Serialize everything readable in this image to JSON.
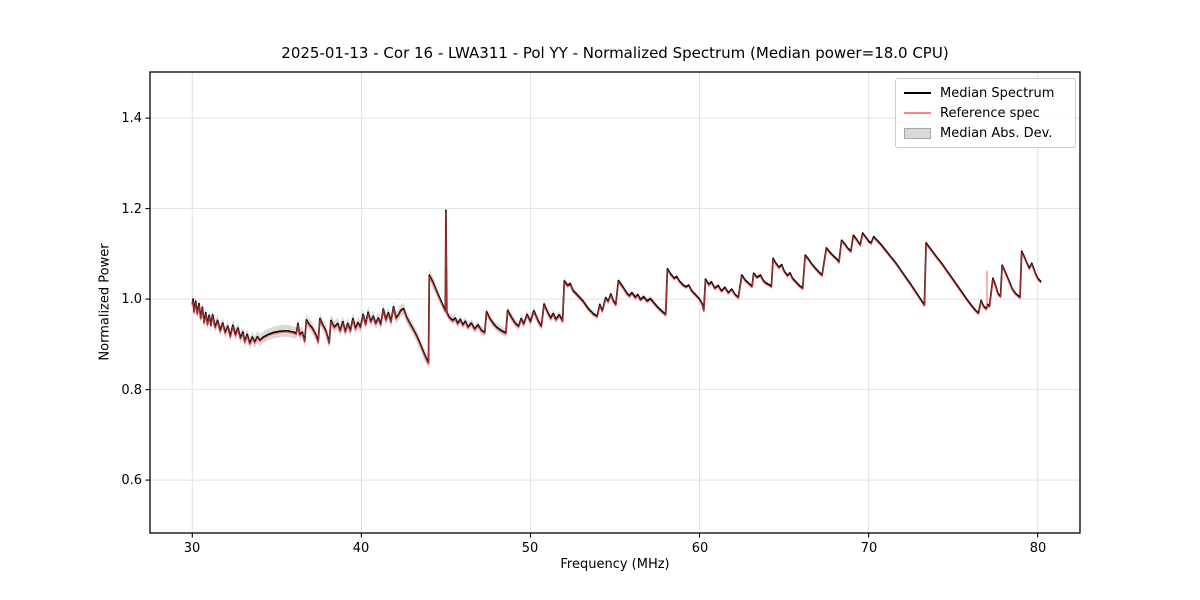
{
  "colors": {
    "median_line": "#000000",
    "reference_line": "#ff4444",
    "reference_opacity": 0.65,
    "reference_legend_swatch": "#ff8585",
    "mad_band_fill": "#8c8c8c",
    "mad_band_opacity": 0.32,
    "mad_legend_fill": "#d9d9d9",
    "mad_legend_edge": "#a6a6a6",
    "grid": "#e2e2e2",
    "spine": "#000000",
    "text": "#000000",
    "background": "#ffffff"
  },
  "chart_data": {
    "type": "line",
    "title": "2025-01-13 - Cor 16 - LWA311 - Pol YY - Normalized Spectrum (Median power=18.0 CPU)",
    "xlabel": "Frequency (MHz)",
    "ylabel": "Normalized Power",
    "xlim": [
      27.5,
      82.5
    ],
    "ylim": [
      0.483,
      1.502
    ],
    "xticks": [
      30,
      40,
      50,
      60,
      70,
      80
    ],
    "xticklabels": [
      "30",
      "40",
      "50",
      "60",
      "70",
      "80"
    ],
    "yticks": [
      0.6,
      0.8,
      1.0,
      1.2,
      1.4
    ],
    "yticklabels": [
      "0.6",
      "0.8",
      "1.0",
      "1.2",
      "1.4"
    ],
    "grid": true,
    "legend": {
      "position": "upper-right",
      "entries": [
        {
          "label": "Median Spectrum",
          "type": "line"
        },
        {
          "label": "Reference spec",
          "type": "line"
        },
        {
          "label": "Median Abs. Dev.",
          "type": "patch"
        }
      ]
    },
    "series": [
      {
        "name": "Median Spectrum",
        "points": [
          [
            30.0,
            0.988
          ],
          [
            30.05,
            1.0
          ],
          [
            30.1,
            0.972
          ],
          [
            30.2,
            0.995
          ],
          [
            30.3,
            0.968
          ],
          [
            30.4,
            0.99
          ],
          [
            30.5,
            0.958
          ],
          [
            30.6,
            0.982
          ],
          [
            30.7,
            0.948
          ],
          [
            30.8,
            0.97
          ],
          [
            30.9,
            0.944
          ],
          [
            31.0,
            0.964
          ],
          [
            31.1,
            0.942
          ],
          [
            31.2,
            0.965
          ],
          [
            31.35,
            0.938
          ],
          [
            31.5,
            0.953
          ],
          [
            31.65,
            0.93
          ],
          [
            31.8,
            0.947
          ],
          [
            31.95,
            0.926
          ],
          [
            32.1,
            0.94
          ],
          [
            32.25,
            0.918
          ],
          [
            32.4,
            0.942
          ],
          [
            32.55,
            0.921
          ],
          [
            32.7,
            0.936
          ],
          [
            32.85,
            0.914
          ],
          [
            33.0,
            0.927
          ],
          [
            33.1,
            0.906
          ],
          [
            33.25,
            0.922
          ],
          [
            33.4,
            0.902
          ],
          [
            33.55,
            0.916
          ],
          [
            33.7,
            0.905
          ],
          [
            33.85,
            0.917
          ],
          [
            34.0,
            0.909
          ],
          [
            34.2,
            0.916
          ],
          [
            34.5,
            0.922
          ],
          [
            34.8,
            0.926
          ],
          [
            35.2,
            0.929
          ],
          [
            35.6,
            0.93
          ],
          [
            36.0,
            0.927
          ],
          [
            36.15,
            0.924
          ],
          [
            36.25,
            0.946
          ],
          [
            36.35,
            0.921
          ],
          [
            36.5,
            0.927
          ],
          [
            36.65,
            0.907
          ],
          [
            36.75,
            0.954
          ],
          [
            36.9,
            0.945
          ],
          [
            37.1,
            0.936
          ],
          [
            37.3,
            0.922
          ],
          [
            37.45,
            0.906
          ],
          [
            37.55,
            0.957
          ],
          [
            37.7,
            0.944
          ],
          [
            37.9,
            0.93
          ],
          [
            38.1,
            0.903
          ],
          [
            38.2,
            0.953
          ],
          [
            38.4,
            0.938
          ],
          [
            38.6,
            0.946
          ],
          [
            38.75,
            0.93
          ],
          [
            38.9,
            0.95
          ],
          [
            39.05,
            0.928
          ],
          [
            39.2,
            0.946
          ],
          [
            39.35,
            0.93
          ],
          [
            39.5,
            0.957
          ],
          [
            39.65,
            0.935
          ],
          [
            39.8,
            0.948
          ],
          [
            39.95,
            0.938
          ],
          [
            40.1,
            0.966
          ],
          [
            40.25,
            0.944
          ],
          [
            40.4,
            0.971
          ],
          [
            40.55,
            0.95
          ],
          [
            40.7,
            0.962
          ],
          [
            40.85,
            0.946
          ],
          [
            41.0,
            0.958
          ],
          [
            41.15,
            0.944
          ],
          [
            41.3,
            0.978
          ],
          [
            41.45,
            0.954
          ],
          [
            41.6,
            0.97
          ],
          [
            41.75,
            0.95
          ],
          [
            41.9,
            0.983
          ],
          [
            42.05,
            0.958
          ],
          [
            42.2,
            0.966
          ],
          [
            42.35,
            0.976
          ],
          [
            42.5,
            0.979
          ],
          [
            42.65,
            0.962
          ],
          [
            42.8,
            0.951
          ],
          [
            43.0,
            0.938
          ],
          [
            43.2,
            0.924
          ],
          [
            43.4,
            0.908
          ],
          [
            43.6,
            0.89
          ],
          [
            43.8,
            0.872
          ],
          [
            43.97,
            0.859
          ],
          [
            44.02,
            1.053
          ],
          [
            44.2,
            1.04
          ],
          [
            44.4,
            1.022
          ],
          [
            44.6,
            1.005
          ],
          [
            44.8,
            0.988
          ],
          [
            44.97,
            0.974
          ],
          [
            45.0,
            1.196
          ],
          [
            45.05,
            0.97
          ],
          [
            45.2,
            0.96
          ],
          [
            45.4,
            0.953
          ],
          [
            45.55,
            0.958
          ],
          [
            45.7,
            0.946
          ],
          [
            45.85,
            0.955
          ],
          [
            46.0,
            0.943
          ],
          [
            46.15,
            0.951
          ],
          [
            46.3,
            0.938
          ],
          [
            46.5,
            0.947
          ],
          [
            46.7,
            0.934
          ],
          [
            46.9,
            0.943
          ],
          [
            47.1,
            0.931
          ],
          [
            47.3,
            0.926
          ],
          [
            47.4,
            0.972
          ],
          [
            47.6,
            0.957
          ],
          [
            47.8,
            0.946
          ],
          [
            48.0,
            0.938
          ],
          [
            48.3,
            0.93
          ],
          [
            48.55,
            0.925
          ],
          [
            48.65,
            0.975
          ],
          [
            48.9,
            0.958
          ],
          [
            49.1,
            0.947
          ],
          [
            49.3,
            0.94
          ],
          [
            49.45,
            0.957
          ],
          [
            49.6,
            0.945
          ],
          [
            49.8,
            0.966
          ],
          [
            50.0,
            0.95
          ],
          [
            50.2,
            0.974
          ],
          [
            50.45,
            0.952
          ],
          [
            50.65,
            0.94
          ],
          [
            50.8,
            0.989
          ],
          [
            51.0,
            0.972
          ],
          [
            51.2,
            0.958
          ],
          [
            51.35,
            0.968
          ],
          [
            51.5,
            0.955
          ],
          [
            51.7,
            0.965
          ],
          [
            51.9,
            0.952
          ],
          [
            52.0,
            1.04
          ],
          [
            52.2,
            1.03
          ],
          [
            52.35,
            1.034
          ],
          [
            52.5,
            1.02
          ],
          [
            52.7,
            1.012
          ],
          [
            52.9,
            1.004
          ],
          [
            53.1,
            0.996
          ],
          [
            53.4,
            0.98
          ],
          [
            53.7,
            0.968
          ],
          [
            53.95,
            0.962
          ],
          [
            54.1,
            0.988
          ],
          [
            54.25,
            0.974
          ],
          [
            54.45,
            1.003
          ],
          [
            54.6,
            0.995
          ],
          [
            54.75,
            1.011
          ],
          [
            54.9,
            0.996
          ],
          [
            55.05,
            0.988
          ],
          [
            55.2,
            1.041
          ],
          [
            55.4,
            1.03
          ],
          [
            55.55,
            1.022
          ],
          [
            55.7,
            1.013
          ],
          [
            55.85,
            1.007
          ],
          [
            56.0,
            1.014
          ],
          [
            56.2,
            1.004
          ],
          [
            56.35,
            1.01
          ],
          [
            56.5,
            0.999
          ],
          [
            56.7,
            1.005
          ],
          [
            56.9,
            0.996
          ],
          [
            57.1,
            1.001
          ],
          [
            57.25,
            0.994
          ],
          [
            57.5,
            0.983
          ],
          [
            57.75,
            0.974
          ],
          [
            58.0,
            0.966
          ],
          [
            58.1,
            1.067
          ],
          [
            58.3,
            1.055
          ],
          [
            58.5,
            1.046
          ],
          [
            58.65,
            1.05
          ],
          [
            58.8,
            1.04
          ],
          [
            59.0,
            1.032
          ],
          [
            59.2,
            1.027
          ],
          [
            59.35,
            1.031
          ],
          [
            59.55,
            1.018
          ],
          [
            59.8,
            1.008
          ],
          [
            60.0,
            1.0
          ],
          [
            60.15,
            0.99
          ],
          [
            60.25,
            0.975
          ],
          [
            60.35,
            1.044
          ],
          [
            60.55,
            1.032
          ],
          [
            60.7,
            1.038
          ],
          [
            60.9,
            1.024
          ],
          [
            61.1,
            1.03
          ],
          [
            61.3,
            1.018
          ],
          [
            61.5,
            1.026
          ],
          [
            61.7,
            1.014
          ],
          [
            61.9,
            1.022
          ],
          [
            62.1,
            1.01
          ],
          [
            62.3,
            1.004
          ],
          [
            62.5,
            1.053
          ],
          [
            62.7,
            1.042
          ],
          [
            62.9,
            1.035
          ],
          [
            63.1,
            1.028
          ],
          [
            63.2,
            1.057
          ],
          [
            63.4,
            1.048
          ],
          [
            63.6,
            1.053
          ],
          [
            63.75,
            1.042
          ],
          [
            63.9,
            1.036
          ],
          [
            64.1,
            1.032
          ],
          [
            64.25,
            1.028
          ],
          [
            64.35,
            1.09
          ],
          [
            64.5,
            1.08
          ],
          [
            64.7,
            1.07
          ],
          [
            64.85,
            1.076
          ],
          [
            65.0,
            1.062
          ],
          [
            65.2,
            1.052
          ],
          [
            65.35,
            1.058
          ],
          [
            65.5,
            1.046
          ],
          [
            65.7,
            1.038
          ],
          [
            65.9,
            1.03
          ],
          [
            66.1,
            1.024
          ],
          [
            66.25,
            1.097
          ],
          [
            66.45,
            1.088
          ],
          [
            66.65,
            1.077
          ],
          [
            66.85,
            1.068
          ],
          [
            67.05,
            1.06
          ],
          [
            67.25,
            1.053
          ],
          [
            67.5,
            1.113
          ],
          [
            67.7,
            1.104
          ],
          [
            67.9,
            1.096
          ],
          [
            68.1,
            1.089
          ],
          [
            68.25,
            1.082
          ],
          [
            68.4,
            1.13
          ],
          [
            68.6,
            1.121
          ],
          [
            68.75,
            1.113
          ],
          [
            68.95,
            1.106
          ],
          [
            69.1,
            1.141
          ],
          [
            69.3,
            1.131
          ],
          [
            69.5,
            1.12
          ],
          [
            69.65,
            1.146
          ],
          [
            69.85,
            1.136
          ],
          [
            70.0,
            1.128
          ],
          [
            70.15,
            1.124
          ],
          [
            70.3,
            1.138
          ],
          [
            70.5,
            1.13
          ],
          [
            70.7,
            1.122
          ],
          [
            71.0,
            1.108
          ],
          [
            71.3,
            1.094
          ],
          [
            71.6,
            1.08
          ],
          [
            71.9,
            1.064
          ],
          [
            72.2,
            1.048
          ],
          [
            72.5,
            1.032
          ],
          [
            72.8,
            1.015
          ],
          [
            73.1,
            0.998
          ],
          [
            73.3,
            0.987
          ],
          [
            73.4,
            1.124
          ],
          [
            73.6,
            1.114
          ],
          [
            73.8,
            1.104
          ],
          [
            74.0,
            1.094
          ],
          [
            74.3,
            1.08
          ],
          [
            74.6,
            1.064
          ],
          [
            74.9,
            1.048
          ],
          [
            75.2,
            1.032
          ],
          [
            75.5,
            1.016
          ],
          [
            75.8,
            1.0
          ],
          [
            76.1,
            0.985
          ],
          [
            76.35,
            0.974
          ],
          [
            76.5,
            0.969
          ],
          [
            76.65,
            0.997
          ],
          [
            76.8,
            0.984
          ],
          [
            76.95,
            0.979
          ],
          [
            77.05,
            0.988
          ],
          [
            77.15,
            0.984
          ],
          [
            77.35,
            1.046
          ],
          [
            77.5,
            1.03
          ],
          [
            77.65,
            1.012
          ],
          [
            77.8,
            1.006
          ],
          [
            77.9,
            1.075
          ],
          [
            78.1,
            1.058
          ],
          [
            78.3,
            1.04
          ],
          [
            78.5,
            1.022
          ],
          [
            78.7,
            1.012
          ],
          [
            78.95,
            1.004
          ],
          [
            79.05,
            1.106
          ],
          [
            79.2,
            1.094
          ],
          [
            79.3,
            1.085
          ],
          [
            79.5,
            1.068
          ],
          [
            79.65,
            1.079
          ],
          [
            79.85,
            1.058
          ],
          [
            80.0,
            1.046
          ],
          [
            80.2,
            1.038
          ]
        ]
      },
      {
        "name": "Reference spec",
        "derived_from": "Median Spectrum",
        "offset": -0.003,
        "extra_spikes": [
          {
            "x": 77.0,
            "top": 1.062,
            "base": 0.978
          }
        ]
      }
    ],
    "mad_band": {
      "name": "Median Abs. Dev.",
      "half_width_segments": [
        {
          "x0": 30.0,
          "x1": 44.5,
          "w": 0.013
        },
        {
          "x0": 44.5,
          "x1": 52.0,
          "w": 0.009
        },
        {
          "x0": 52.0,
          "x1": 58.0,
          "w": 0.006
        },
        {
          "x0": 58.0,
          "x1": 80.2,
          "w": 0.0035
        }
      ]
    }
  }
}
